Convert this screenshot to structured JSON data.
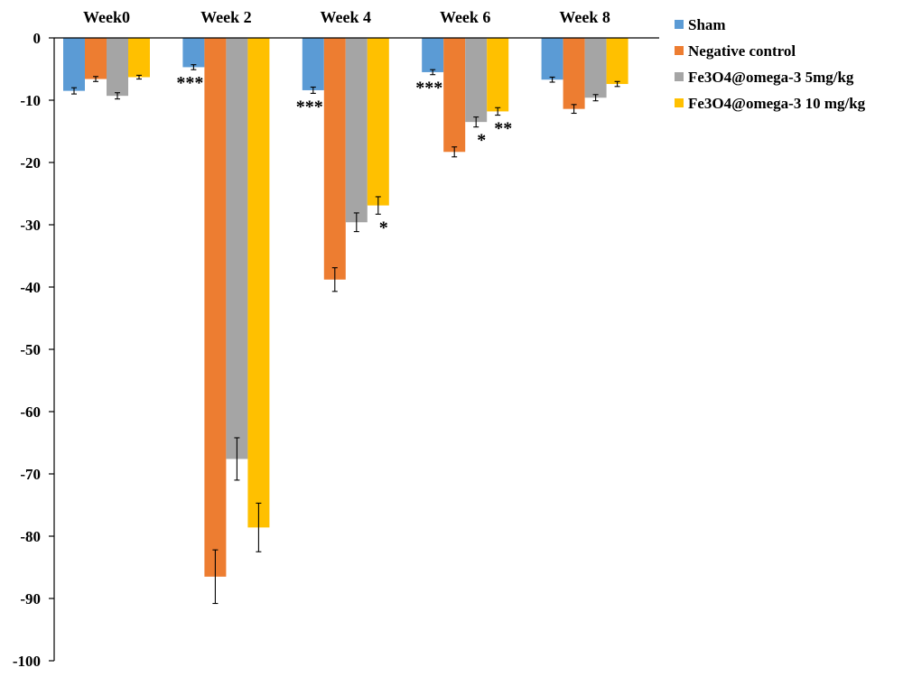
{
  "chart_data": {
    "type": "bar",
    "categories": [
      "Week0",
      "Week 2",
      "Week 4",
      "Week 6",
      "Week 8"
    ],
    "series": [
      {
        "name": "Sham",
        "color": "#5B9BD5",
        "values": [
          -8.5,
          -4.7,
          -8.4,
          -5.5,
          -6.7
        ],
        "errors": [
          0.5,
          0.4,
          0.5,
          0.4,
          0.4
        ],
        "significance": [
          "",
          "***",
          "***",
          "***",
          ""
        ]
      },
      {
        "name": "Negative control",
        "color": "#ED7D31",
        "values": [
          -6.6,
          -86.5,
          -38.8,
          -18.3,
          -11.4
        ],
        "errors": [
          0.4,
          4.3,
          1.9,
          0.8,
          0.7
        ],
        "significance": [
          "",
          "",
          "",
          "",
          ""
        ]
      },
      {
        "name": "Fe3O4@omega-3 5mg/kg",
        "color": "#A5A5A5",
        "values": [
          -9.3,
          -67.6,
          -29.6,
          -13.5,
          -9.6
        ],
        "errors": [
          0.5,
          3.4,
          1.5,
          0.8,
          0.5
        ],
        "significance": [
          "",
          "",
          "",
          "*",
          ""
        ]
      },
      {
        "name": "Fe3O4@omega-3 10 mg/kg",
        "color": "#FFC000",
        "values": [
          -6.3,
          -78.6,
          -26.9,
          -11.8,
          -7.4
        ],
        "errors": [
          0.3,
          3.9,
          1.4,
          0.6,
          0.4
        ],
        "significance": [
          "",
          "",
          "*",
          "**",
          ""
        ]
      }
    ],
    "yticks": [
      "0",
      "-10",
      "-20",
      "-30",
      "-40",
      "-50",
      "-60",
      "-70",
      "-80",
      "-90",
      "-100"
    ],
    "ylim": [
      -100,
      0
    ],
    "grid": false,
    "legend_position": "top-right"
  }
}
